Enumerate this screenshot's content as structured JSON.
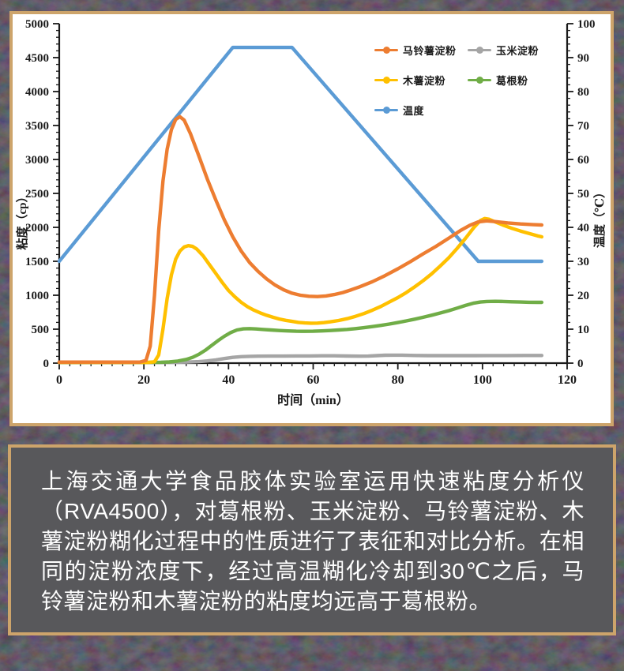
{
  "theme": {
    "frame_border_color": "#cda46b",
    "card_background": "#ffffff",
    "caption_background": "#58585b",
    "caption_text_color": "#ffffff",
    "page_background": "#17110e",
    "axis_color": "#1a1a1a"
  },
  "chart_data": {
    "type": "line",
    "title": "",
    "xlabel": "时间（min）",
    "ylabel_left": "粘度（cp）",
    "ylabel_right": "温度（℃）",
    "xlim": [
      0,
      120
    ],
    "ylim_left": [
      0,
      5000
    ],
    "ylim_right": [
      0,
      100
    ],
    "x_ticks": [
      0,
      20,
      40,
      60,
      80,
      100,
      120
    ],
    "y_left_ticks": [
      0,
      500,
      1000,
      1500,
      2000,
      2500,
      3000,
      3500,
      4000,
      4500,
      5000
    ],
    "y_right_ticks": [
      0,
      10,
      20,
      30,
      40,
      50,
      60,
      70,
      80,
      90,
      100
    ],
    "x_minor_step": 2.5,
    "y_left_minor_step": 100,
    "y_right_minor_step": 2,
    "grid": false,
    "legend_position": "inside-top-right",
    "series": [
      {
        "name": "马铃薯淀粉",
        "color": "#ED7D31",
        "axis": "left",
        "z": 5,
        "points": [
          [
            0,
            15
          ],
          [
            10,
            15
          ],
          [
            19,
            15
          ],
          [
            20.5,
            40
          ],
          [
            21.5,
            250
          ],
          [
            22.5,
            1000
          ],
          [
            23.5,
            1950
          ],
          [
            24.5,
            2680
          ],
          [
            25.5,
            3150
          ],
          [
            26.5,
            3440
          ],
          [
            27.5,
            3590
          ],
          [
            28.5,
            3630
          ],
          [
            29.5,
            3580
          ],
          [
            31,
            3380
          ],
          [
            33,
            3050
          ],
          [
            35,
            2710
          ],
          [
            37,
            2400
          ],
          [
            39,
            2110
          ],
          [
            41,
            1860
          ],
          [
            43,
            1650
          ],
          [
            45,
            1480
          ],
          [
            47,
            1350
          ],
          [
            49,
            1240
          ],
          [
            51,
            1150
          ],
          [
            53,
            1080
          ],
          [
            55,
            1030
          ],
          [
            57,
            1000
          ],
          [
            59,
            985
          ],
          [
            61,
            980
          ],
          [
            63,
            990
          ],
          [
            65,
            1010
          ],
          [
            67,
            1040
          ],
          [
            69,
            1080
          ],
          [
            71,
            1125
          ],
          [
            74,
            1200
          ],
          [
            77,
            1290
          ],
          [
            80,
            1390
          ],
          [
            83,
            1495
          ],
          [
            86,
            1610
          ],
          [
            89,
            1720
          ],
          [
            92,
            1840
          ],
          [
            95,
            1960
          ],
          [
            97,
            2030
          ],
          [
            99,
            2080
          ],
          [
            101,
            2095
          ],
          [
            103,
            2085
          ],
          [
            106,
            2065
          ],
          [
            109,
            2050
          ],
          [
            112,
            2040
          ],
          [
            114,
            2035
          ]
        ]
      },
      {
        "name": "玉米淀粉",
        "color": "#A5A5A5",
        "axis": "left",
        "z": 1,
        "points": [
          [
            0,
            8
          ],
          [
            10,
            8
          ],
          [
            20,
            8
          ],
          [
            26,
            10
          ],
          [
            30,
            15
          ],
          [
            33,
            22
          ],
          [
            35,
            32
          ],
          [
            37,
            48
          ],
          [
            39,
            68
          ],
          [
            41,
            85
          ],
          [
            43,
            95
          ],
          [
            45,
            100
          ],
          [
            47,
            102
          ],
          [
            50,
            103
          ],
          [
            53,
            104
          ],
          [
            56,
            106
          ],
          [
            59,
            106
          ],
          [
            62,
            108
          ],
          [
            65,
            108
          ],
          [
            68,
            105
          ],
          [
            71,
            102
          ],
          [
            73,
            103
          ],
          [
            75,
            110
          ],
          [
            77,
            116
          ],
          [
            79,
            118
          ],
          [
            81,
            117
          ],
          [
            84,
            113
          ],
          [
            87,
            111
          ],
          [
            90,
            110
          ],
          [
            94,
            110
          ],
          [
            98,
            111
          ],
          [
            102,
            112
          ],
          [
            106,
            112
          ],
          [
            110,
            113
          ],
          [
            114,
            113
          ]
        ]
      },
      {
        "name": "木薯淀粉",
        "color": "#FFC000",
        "axis": "left",
        "z": 4,
        "points": [
          [
            0,
            10
          ],
          [
            10,
            10
          ],
          [
            21,
            10
          ],
          [
            22.5,
            20
          ],
          [
            23.5,
            120
          ],
          [
            24.5,
            500
          ],
          [
            25.5,
            950
          ],
          [
            26.5,
            1300
          ],
          [
            27.5,
            1530
          ],
          [
            28.5,
            1650
          ],
          [
            29.5,
            1710
          ],
          [
            30.5,
            1730
          ],
          [
            31.5,
            1720
          ],
          [
            32.5,
            1680
          ],
          [
            34,
            1580
          ],
          [
            35.5,
            1450
          ],
          [
            37,
            1320
          ],
          [
            38.5,
            1190
          ],
          [
            40,
            1070
          ],
          [
            41.5,
            975
          ],
          [
            43,
            895
          ],
          [
            44.5,
            830
          ],
          [
            46,
            780
          ],
          [
            47.5,
            740
          ],
          [
            49,
            705
          ],
          [
            50.5,
            675
          ],
          [
            52,
            650
          ],
          [
            53.5,
            630
          ],
          [
            55,
            615
          ],
          [
            56.5,
            600
          ],
          [
            58,
            592
          ],
          [
            59.5,
            588
          ],
          [
            61,
            590
          ],
          [
            62.5,
            597
          ],
          [
            64,
            608
          ],
          [
            66,
            628
          ],
          [
            68,
            655
          ],
          [
            70,
            690
          ],
          [
            72,
            730
          ],
          [
            74,
            780
          ],
          [
            76,
            835
          ],
          [
            78,
            900
          ],
          [
            80,
            965
          ],
          [
            82,
            1040
          ],
          [
            84,
            1125
          ],
          [
            86,
            1215
          ],
          [
            88,
            1315
          ],
          [
            90,
            1430
          ],
          [
            92,
            1550
          ],
          [
            94,
            1690
          ],
          [
            96,
            1840
          ],
          [
            98,
            2000
          ],
          [
            99.5,
            2100
          ],
          [
            100.5,
            2130
          ],
          [
            101.5,
            2120
          ],
          [
            103,
            2080
          ],
          [
            105,
            2030
          ],
          [
            107,
            1985
          ],
          [
            109,
            1945
          ],
          [
            111,
            1910
          ],
          [
            113,
            1875
          ],
          [
            114,
            1860
          ]
        ]
      },
      {
        "name": "葛根粉",
        "color": "#70AD47",
        "axis": "left",
        "z": 2,
        "points": [
          [
            0,
            10
          ],
          [
            10,
            10
          ],
          [
            20,
            10
          ],
          [
            24,
            13
          ],
          [
            26,
            18
          ],
          [
            28,
            30
          ],
          [
            30,
            55
          ],
          [
            31.5,
            85
          ],
          [
            33,
            130
          ],
          [
            34.5,
            190
          ],
          [
            36,
            260
          ],
          [
            37.5,
            330
          ],
          [
            39,
            395
          ],
          [
            40.5,
            450
          ],
          [
            42,
            488
          ],
          [
            43.5,
            505
          ],
          [
            45,
            508
          ],
          [
            46.5,
            503
          ],
          [
            48,
            497
          ],
          [
            50,
            488
          ],
          [
            52,
            480
          ],
          [
            54,
            474
          ],
          [
            56,
            470
          ],
          [
            58,
            469
          ],
          [
            60,
            470
          ],
          [
            62,
            474
          ],
          [
            64,
            480
          ],
          [
            66,
            488
          ],
          [
            68,
            497
          ],
          [
            70,
            508
          ],
          [
            72,
            522
          ],
          [
            74,
            538
          ],
          [
            76,
            556
          ],
          [
            78,
            576
          ],
          [
            80,
            598
          ],
          [
            82,
            622
          ],
          [
            84,
            648
          ],
          [
            86,
            676
          ],
          [
            88,
            706
          ],
          [
            90,
            738
          ],
          [
            92,
            772
          ],
          [
            94,
            810
          ],
          [
            96,
            850
          ],
          [
            98,
            885
          ],
          [
            99.5,
            900
          ],
          [
            101,
            908
          ],
          [
            103,
            910
          ],
          [
            105,
            908
          ],
          [
            107,
            904
          ],
          [
            109,
            900
          ],
          [
            111,
            897
          ],
          [
            113,
            895
          ],
          [
            114,
            895
          ]
        ]
      },
      {
        "name": "温度",
        "color": "#5B9BD5",
        "axis": "right",
        "z": 3,
        "points": [
          [
            0,
            30
          ],
          [
            41,
            93
          ],
          [
            55,
            93
          ],
          [
            99,
            30
          ],
          [
            114,
            30
          ]
        ]
      }
    ]
  },
  "caption": {
    "text": "上海交通大学食品胶体实验室运用快速粘度分析仪（RVA4500），对葛根粉、玉米淀粉、马铃薯淀粉、木薯淀粉糊化过程中的性质进行了表征和对比分析。在相同的淀粉浓度下，经过高温糊化冷却到30℃之后，马铃薯淀粉和木薯淀粉的粘度均远高于葛根粉。"
  }
}
